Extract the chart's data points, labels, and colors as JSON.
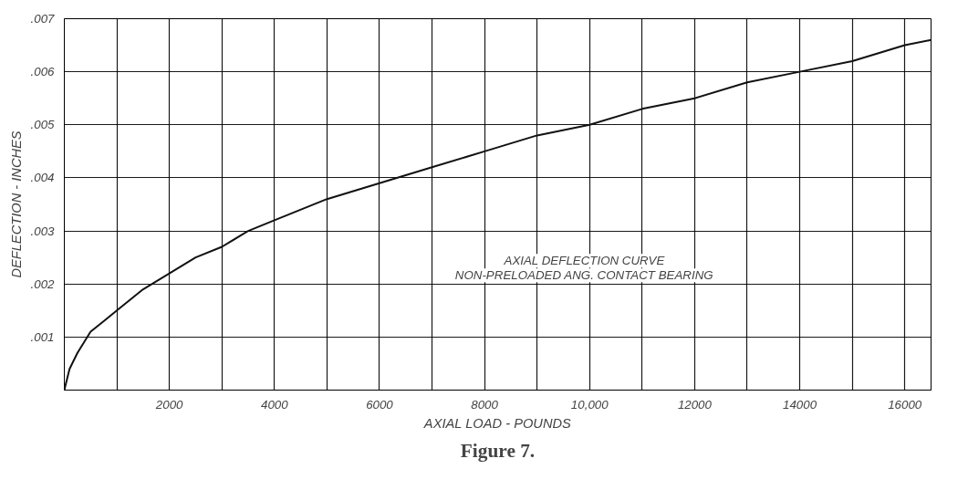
{
  "chart_data": {
    "type": "line",
    "xlabel": "AXIAL LOAD - POUNDS",
    "ylabel": "DEFLECTION - INCHES",
    "annotations": [
      "AXIAL DEFLECTION CURVE",
      "NON-PRELOADED ANG. CONTACT BEARING",
      "Figure 7."
    ],
    "x": [
      0,
      100,
      250,
      500,
      750,
      1000,
      1500,
      2000,
      2500,
      3000,
      3500,
      4000,
      5000,
      6000,
      7000,
      8000,
      9000,
      10000,
      11000,
      12000,
      13000,
      14000,
      15000,
      16000,
      16500
    ],
    "series": [
      {
        "color": "#111111",
        "values": [
          0,
          0.0004,
          0.0007,
          0.0011,
          0.0013,
          0.0015,
          0.0019,
          0.0022,
          0.0025,
          0.0027,
          0.003,
          0.0032,
          0.0036,
          0.0039,
          0.0042,
          0.0045,
          0.0048,
          0.005,
          0.0053,
          0.0055,
          0.0058,
          0.006,
          0.0062,
          0.0065,
          0.0066
        ]
      }
    ],
    "xlim": [
      0,
      16500
    ],
    "ylim": [
      0,
      0.007
    ],
    "xticks": [
      {
        "value": 0,
        "label": null
      },
      {
        "value": 1000,
        "label": null
      },
      2000,
      {
        "value": 3000,
        "label": null
      },
      4000,
      {
        "value": 5000,
        "label": null
      },
      6000,
      {
        "value": 7000,
        "label": null
      },
      8000,
      {
        "value": 9000,
        "label": null
      },
      {
        "value": 10000,
        "label": "10,000"
      },
      {
        "value": 11000,
        "label": null
      },
      12000,
      {
        "value": 13000,
        "label": null
      },
      14000,
      {
        "value": 15000,
        "label": null
      },
      16000
    ],
    "yticks": [
      {
        "value": 0,
        "label": null
      },
      {
        "value": 0.001,
        "label": ".001"
      },
      {
        "value": 0.002,
        "label": ".002"
      },
      {
        "value": 0.003,
        "label": ".003"
      },
      {
        "value": 0.004,
        "label": ".004"
      },
      {
        "value": 0.005,
        "label": ".005"
      },
      {
        "value": 0.006,
        "label": ".006"
      },
      {
        "value": 0.007,
        "label": ".007"
      }
    ],
    "grid": true,
    "marker": "none",
    "line_style": "solid"
  }
}
